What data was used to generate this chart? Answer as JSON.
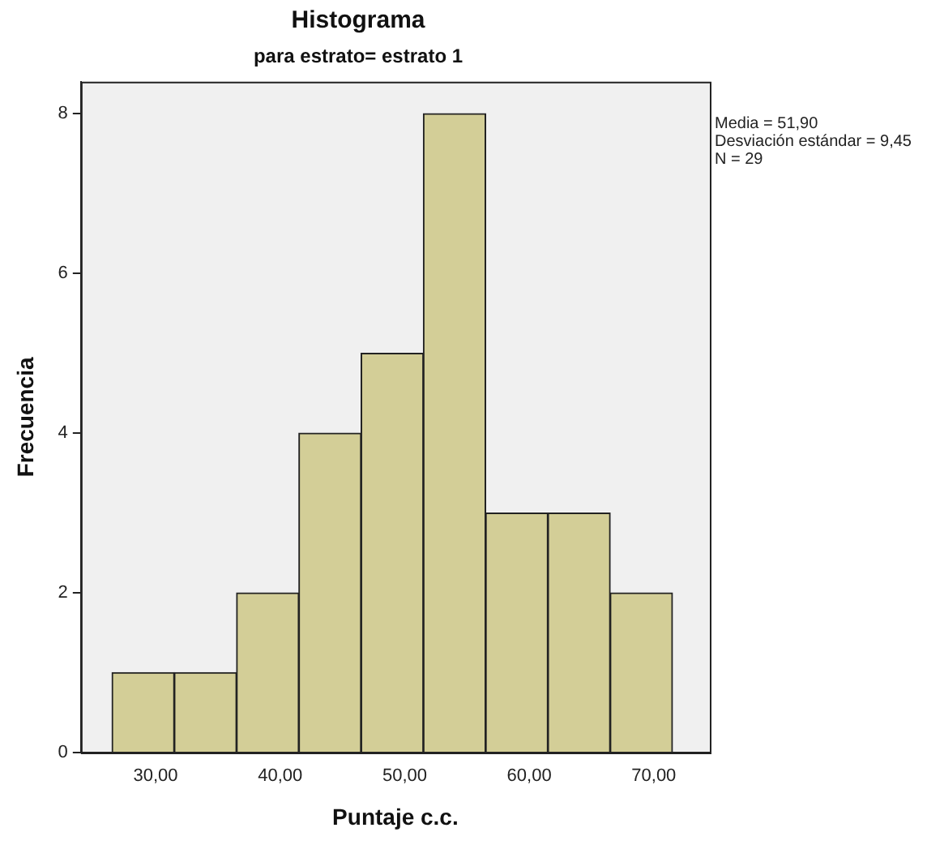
{
  "chart_data": {
    "type": "histogram",
    "title": "Histograma",
    "subtitle": "para estrato= estrato 1",
    "xlabel": "Puntaje c.c.",
    "ylabel": "Frecuencia",
    "bins": [
      26.5,
      31.5,
      36.5,
      41.5,
      46.5,
      51.5,
      56.5,
      61.5,
      66.5,
      71.5
    ],
    "values": [
      1,
      1,
      2,
      4,
      5,
      8,
      3,
      3,
      2
    ],
    "color": "#d3ce97",
    "xlim": [
      24,
      74.5
    ],
    "xticks": [
      {
        "value": 30,
        "label": "30,00"
      },
      {
        "value": 40,
        "label": "40,00"
      },
      {
        "value": 50,
        "label": "50,00"
      },
      {
        "value": 60,
        "label": "60,00"
      },
      {
        "value": 70,
        "label": "70,00"
      }
    ],
    "ylim": [
      0,
      8.4
    ],
    "yticks": [
      0,
      2,
      4,
      6,
      8
    ],
    "grid": false,
    "legend": false,
    "annotations": [
      "Media = 51,90",
      "Desviación estándar = 9,45",
      "N = 29"
    ]
  }
}
